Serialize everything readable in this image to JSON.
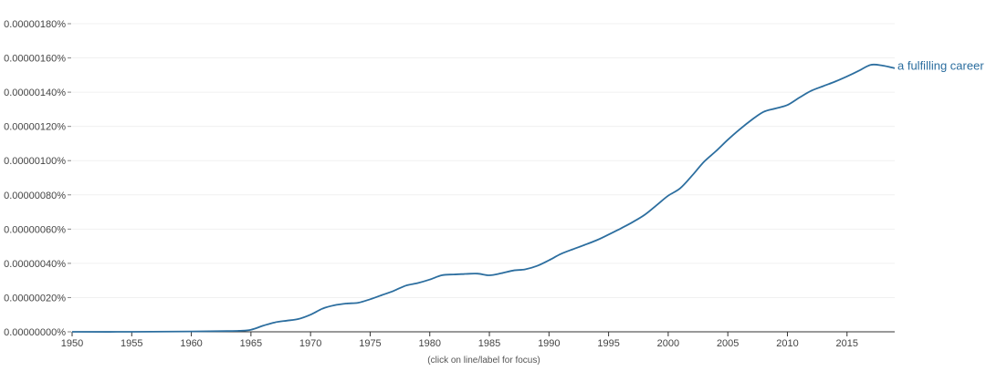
{
  "chart_data": {
    "type": "line",
    "title": "",
    "xlabel": "",
    "ylabel": "",
    "xlim": [
      1950,
      2019
    ],
    "ylim": [
      0,
      1.8e-06
    ],
    "x_ticks": [
      1950,
      1955,
      1960,
      1965,
      1970,
      1975,
      1980,
      1985,
      1990,
      1995,
      2000,
      2005,
      2010,
      2015
    ],
    "x_tick_labels": [
      "1950",
      "1955",
      "1960",
      "1965",
      "1970",
      "1975",
      "1980",
      "1985",
      "1990",
      "1995",
      "2000",
      "2005",
      "2010",
      "2015"
    ],
    "y_ticks": [
      0,
      2e-07,
      4e-07,
      6e-07,
      8e-07,
      1e-06,
      1.2e-06,
      1.4e-06,
      1.6e-06,
      1.8e-06
    ],
    "y_tick_labels": [
      "0.00000000%",
      "0.00000020%",
      "0.00000040%",
      "0.00000060%",
      "0.00000080%",
      "0.00000100%",
      "0.00000120%",
      "0.00000140%",
      "0.00000160%",
      "0.00000180%"
    ],
    "grid": true,
    "series": [
      {
        "name": "a fulfilling career",
        "color": "#2c6e9f",
        "x": [
          1950,
          1955,
          1960,
          1963,
          1964,
          1965,
          1966,
          1967,
          1968,
          1969,
          1970,
          1971,
          1972,
          1973,
          1974,
          1975,
          1976,
          1977,
          1978,
          1979,
          1980,
          1981,
          1982,
          1983,
          1984,
          1985,
          1986,
          1987,
          1988,
          1989,
          1990,
          1991,
          1992,
          1993,
          1994,
          1995,
          1996,
          1997,
          1998,
          1999,
          2000,
          2001,
          2002,
          2003,
          2004,
          2005,
          2006,
          2007,
          2008,
          2009,
          2010,
          2011,
          2012,
          2013,
          2014,
          2015,
          2016,
          2017,
          2018,
          2019
        ],
        "y": [
          0,
          0,
          2e-09,
          4e-09,
          6e-09,
          1.2e-08,
          3.5e-08,
          5.5e-08,
          6.5e-08,
          7.5e-08,
          1e-07,
          1.35e-07,
          1.55e-07,
          1.65e-07,
          1.7e-07,
          1.9e-07,
          2.15e-07,
          2.4e-07,
          2.7e-07,
          2.85e-07,
          3.05e-07,
          3.3e-07,
          3.35e-07,
          3.38e-07,
          3.4e-07,
          3.3e-07,
          3.42e-07,
          3.58e-07,
          3.65e-07,
          3.85e-07,
          4.18e-07,
          4.55e-07,
          4.82e-07,
          5.08e-07,
          5.35e-07,
          5.68e-07,
          6.03e-07,
          6.4e-07,
          6.82e-07,
          7.38e-07,
          7.95e-07,
          8.38e-07,
          9.12e-07,
          9.93e-07,
          1.055e-06,
          1.122e-06,
          1.183e-06,
          1.238e-06,
          1.285e-06,
          1.305e-06,
          1.325e-06,
          1.368e-06,
          1.408e-06,
          1.435e-06,
          1.462e-06,
          1.492e-06,
          1.525e-06,
          1.56e-06,
          1.555e-06,
          1.54e-06
        ]
      }
    ],
    "annotation": "(click on line/label for focus)"
  }
}
